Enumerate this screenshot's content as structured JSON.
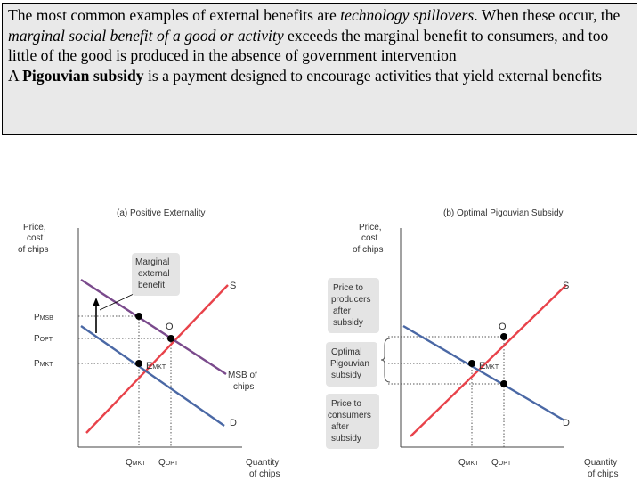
{
  "paragraph1": {
    "p1": "The most common examples of external benefits are ",
    "em1": "technology spillovers",
    "p2": ". When these occur, the ",
    "em2": "marginal social benefit of a good or activity",
    "p3": " exceeds the marginal benefit to consumers, and too little of the good is produced in the absence of government intervention"
  },
  "paragraph2": {
    "p1": "A ",
    "strong": "Pigouvian subsidy",
    "p2": " is a payment designed to encourage activities that yield external benefits"
  },
  "graph_a": {
    "title": "(a) Positive Externality",
    "y_label": [
      "Price,",
      "cost",
      "of chips"
    ],
    "x_label": [
      "Quantity",
      "of chips"
    ],
    "p_msb": "MSB",
    "p_opt": "OPT",
    "p_mkt": "MKT",
    "q_mkt": "MKT",
    "q_opt": "OPT",
    "point_o": "O",
    "point_e": "E",
    "point_e_sub": "MKT",
    "curve_s": "S",
    "curve_d": "D",
    "msb_curve": [
      "MSB of",
      "chips"
    ],
    "callout": [
      "Marginal",
      "external",
      "benefit"
    ]
  },
  "graph_b": {
    "title": "(b) Optimal Pigouvian Subsidy",
    "y_label": [
      "Price,",
      "cost",
      "of chips"
    ],
    "x_label": [
      "Quantity",
      "of chips"
    ],
    "q_mkt": "MKT",
    "q_opt": "OPT",
    "point_o": "O",
    "point_e": "E",
    "point_e_sub": "MKT",
    "curve_s": "S",
    "curve_d": "D",
    "callout_producers": [
      "Price to",
      "producers",
      "after",
      "subsidy"
    ],
    "callout_subsidy": [
      "Optimal",
      "Pigouvian",
      "subsidy"
    ],
    "callout_consumers": [
      "Price to",
      "consumers",
      "after",
      "subsidy"
    ]
  },
  "colors": {
    "supply": "#e8424a",
    "demand": "#4a68a5",
    "msb": "#7a4a8c",
    "callout_bg": "#e4e4e4"
  }
}
